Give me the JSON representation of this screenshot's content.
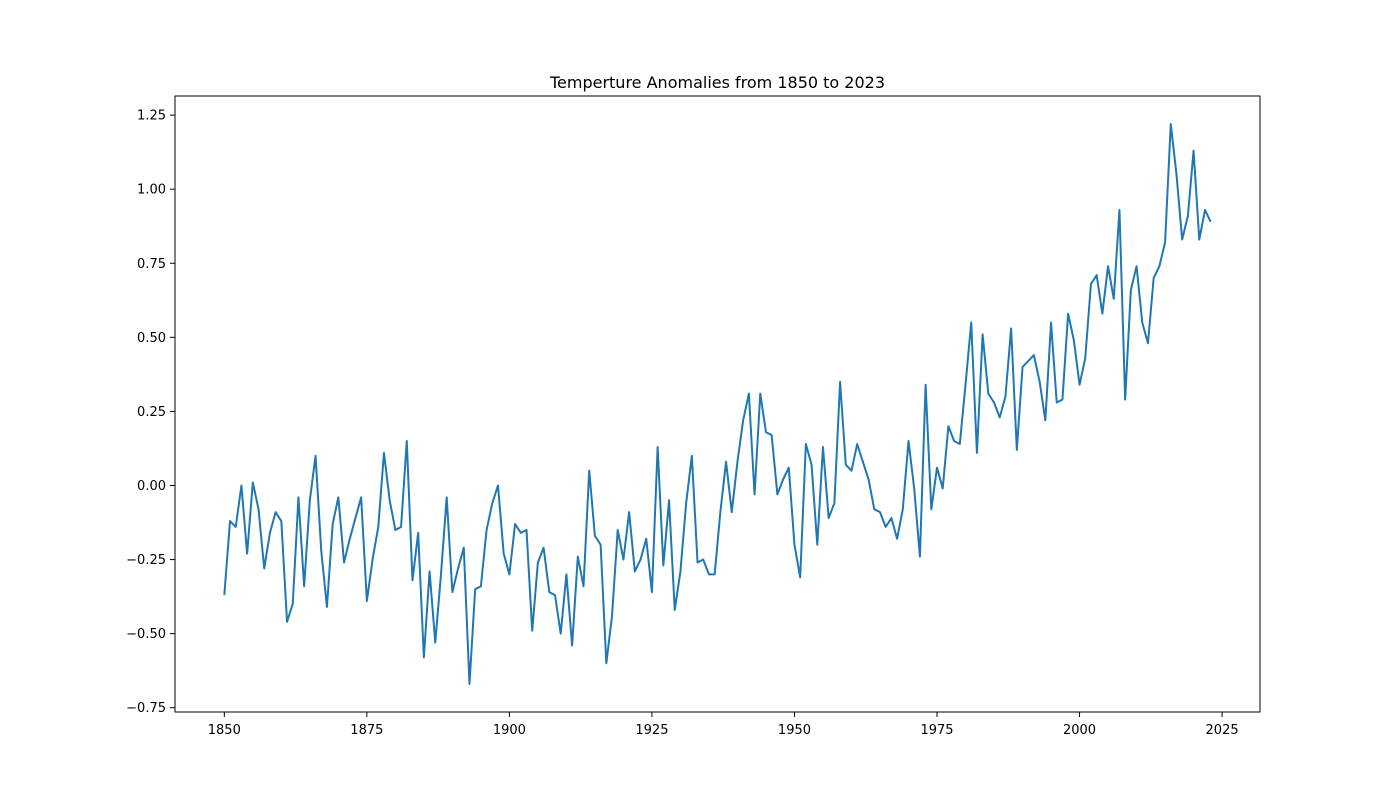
{
  "chart_data": {
    "type": "line",
    "title": "Temperture Anomalies from 1850 to 2023",
    "xlabel": "",
    "ylabel": "",
    "xlim": [
      1841.35,
      2031.65
    ],
    "ylim": [
      -0.7645,
      1.3145
    ],
    "x_ticks": [
      1850,
      1875,
      1900,
      1925,
      1950,
      1975,
      2000,
      2025
    ],
    "y_ticks": [
      -0.75,
      -0.5,
      -0.25,
      0.0,
      0.25,
      0.5,
      0.75,
      1.0,
      1.25
    ],
    "y_tick_labels": [
      "−0.75",
      "−0.50",
      "−0.25",
      "0.00",
      "0.25",
      "0.50",
      "0.75",
      "1.00",
      "1.25"
    ],
    "grid": false,
    "legend": "none",
    "series_color": "#1f77b4",
    "x_start": 1850,
    "x_end": 2023,
    "values": [
      -0.37,
      -0.12,
      -0.14,
      0.0,
      -0.23,
      0.01,
      -0.08,
      -0.28,
      -0.16,
      -0.09,
      -0.12,
      -0.46,
      -0.4,
      -0.04,
      -0.34,
      -0.05,
      0.1,
      -0.22,
      -0.41,
      -0.13,
      -0.04,
      -0.26,
      -0.18,
      -0.11,
      -0.04,
      -0.39,
      -0.25,
      -0.14,
      0.11,
      -0.05,
      -0.15,
      -0.14,
      0.15,
      -0.32,
      -0.16,
      -0.58,
      -0.29,
      -0.53,
      -0.3,
      -0.04,
      -0.36,
      -0.28,
      -0.21,
      -0.67,
      -0.35,
      -0.34,
      -0.15,
      -0.06,
      0.0,
      -0.23,
      -0.3,
      -0.13,
      -0.16,
      -0.15,
      -0.49,
      -0.26,
      -0.21,
      -0.36,
      -0.37,
      -0.5,
      -0.3,
      -0.54,
      -0.24,
      -0.34,
      0.05,
      -0.17,
      -0.2,
      -0.6,
      -0.44,
      -0.15,
      -0.25,
      -0.09,
      -0.29,
      -0.25,
      -0.18,
      -0.36,
      0.13,
      -0.27,
      -0.05,
      -0.42,
      -0.29,
      -0.06,
      0.1,
      -0.26,
      -0.25,
      -0.3,
      -0.3,
      -0.09,
      0.08,
      -0.09,
      0.08,
      0.22,
      0.31,
      -0.03,
      0.31,
      0.18,
      0.17,
      -0.03,
      0.02,
      0.06,
      -0.2,
      -0.31,
      0.14,
      0.07,
      -0.2,
      0.13,
      -0.11,
      -0.06,
      0.35,
      0.07,
      0.05,
      0.14,
      0.08,
      0.02,
      -0.08,
      -0.09,
      -0.14,
      -0.11,
      -0.18,
      -0.08,
      0.15,
      -0.01,
      -0.24,
      0.34,
      -0.08,
      0.06,
      -0.01,
      0.2,
      0.15,
      0.14,
      0.34,
      0.55,
      0.11,
      0.51,
      0.31,
      0.28,
      0.23,
      0.3,
      0.53,
      0.12,
      0.4,
      0.42,
      0.44,
      0.35,
      0.22,
      0.55,
      0.28,
      0.29,
      0.58,
      0.49,
      0.34,
      0.43,
      0.68,
      0.71,
      0.58,
      0.74,
      0.63,
      0.93,
      0.29,
      0.66,
      0.74,
      0.55,
      0.48,
      0.7,
      0.74,
      0.82,
      1.22,
      1.05,
      0.83,
      0.91,
      1.13,
      0.83,
      0.93,
      0.89
    ]
  }
}
